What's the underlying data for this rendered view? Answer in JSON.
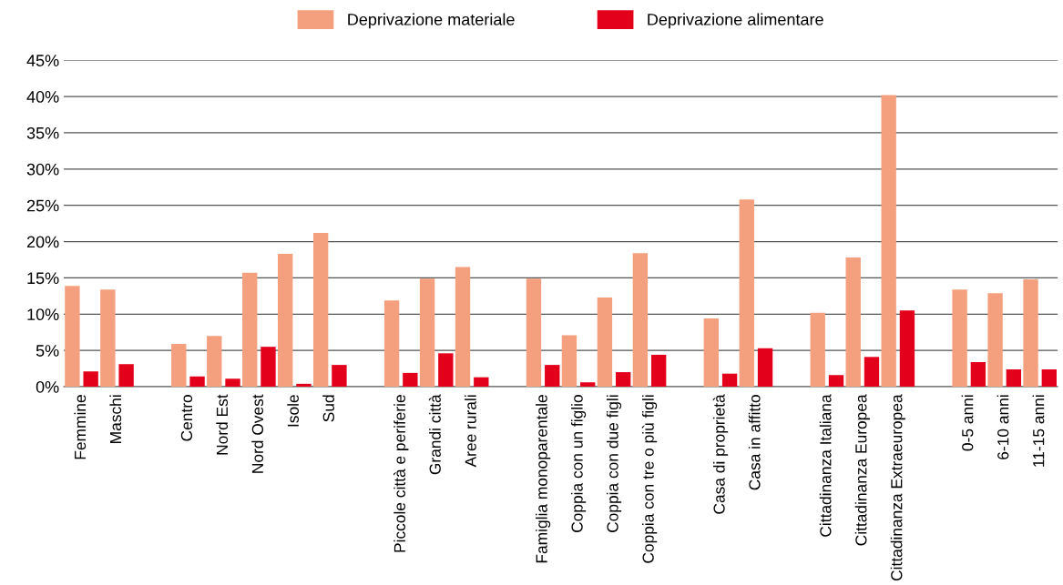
{
  "chart_data": {
    "type": "bar",
    "categories": [
      "Femmine",
      "Maschi",
      null,
      "Centro",
      "Nord Est",
      "Nord Ovest",
      "Isole",
      "Sud",
      null,
      "Piccole città e periferie",
      "Grandi città",
      "Aree rurali",
      null,
      "Famiglia monoparentale",
      "Coppia con un figlio",
      "Coppia con due figli",
      "Coppia con tre o più figli",
      null,
      "Casa di proprietà",
      "Casa in affitto",
      null,
      "Cittadinanza Italiana",
      "Cittadinanza Europea",
      "Cittadinanza Extraeuropea",
      null,
      "0-5 anni",
      "6-10 anni",
      "11-15 anni"
    ],
    "series": [
      {
        "name": "Deprivazione materiale",
        "color": "#f4a07f",
        "values": [
          13.9,
          13.4,
          null,
          5.9,
          7.0,
          15.7,
          18.3,
          21.2,
          null,
          11.9,
          14.9,
          16.5,
          null,
          14.9,
          7.1,
          12.3,
          18.4,
          null,
          9.4,
          25.8,
          null,
          10.2,
          17.8,
          40.2,
          null,
          13.4,
          12.9,
          14.8
        ]
      },
      {
        "name": "Deprivazione alimentare",
        "color": "#e3001b",
        "values": [
          2.1,
          3.1,
          null,
          1.4,
          1.1,
          5.5,
          0.4,
          3.0,
          null,
          1.9,
          4.6,
          1.3,
          null,
          3.0,
          0.6,
          2.0,
          4.4,
          null,
          1.8,
          5.3,
          null,
          1.6,
          4.1,
          10.5,
          null,
          3.4,
          2.4,
          2.4
        ]
      }
    ],
    "ylim": [
      0,
      45
    ],
    "yticks": [
      {
        "value": 0,
        "label": "0%"
      },
      {
        "value": 5,
        "label": "5%"
      },
      {
        "value": 10,
        "label": "10%"
      },
      {
        "value": 15,
        "label": "15%"
      },
      {
        "value": 20,
        "label": "20%"
      },
      {
        "value": 25,
        "label": "25%"
      },
      {
        "value": 30,
        "label": "30%"
      },
      {
        "value": 35,
        "label": "35%"
      },
      {
        "value": 40,
        "label": "40%"
      },
      {
        "value": 45,
        "label": "45%"
      }
    ],
    "grid": "y",
    "legend": "top"
  }
}
